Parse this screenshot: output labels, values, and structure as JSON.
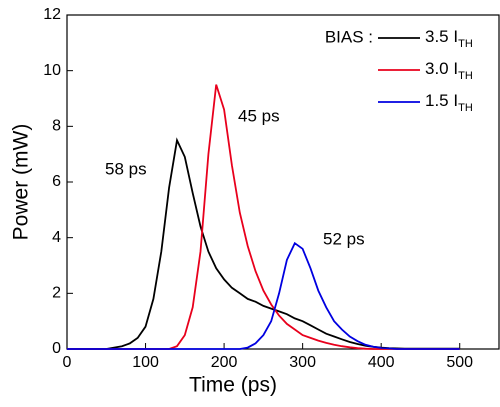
{
  "chart_data": {
    "type": "line",
    "x_label": "Time (ps)",
    "y_label": "Power (mW)",
    "legend_title": "BIAS :",
    "x": [
      0,
      10,
      20,
      30,
      40,
      50,
      60,
      70,
      80,
      90,
      100,
      110,
      120,
      130,
      140,
      150,
      160,
      170,
      180,
      190,
      200,
      210,
      220,
      230,
      240,
      250,
      260,
      270,
      280,
      290,
      300,
      310,
      320,
      330,
      340,
      350,
      360,
      370,
      380,
      390,
      400,
      410,
      420,
      430,
      440,
      450,
      460,
      470,
      480,
      490,
      500
    ],
    "series": [
      {
        "name": "3.5 ITH",
        "color": "#000000",
        "values": [
          0,
          0,
          0,
          0,
          0,
          0,
          0.05,
          0.1,
          0.2,
          0.4,
          0.8,
          1.8,
          3.5,
          5.8,
          7.5,
          6.9,
          5.6,
          4.4,
          3.5,
          2.9,
          2.5,
          2.2,
          2.0,
          1.8,
          1.7,
          1.55,
          1.45,
          1.35,
          1.25,
          1.1,
          1.0,
          0.85,
          0.7,
          0.55,
          0.45,
          0.35,
          0.25,
          0.18,
          0.12,
          0.08,
          0.05,
          0.03,
          0.02,
          0.01,
          0.01,
          0.01,
          0.01,
          0.01,
          0.01,
          0.01,
          0.01
        ]
      },
      {
        "name": "3.0 ITH",
        "color": "#e8001c",
        "values": [
          0,
          0,
          0,
          0,
          0,
          0,
          0,
          0,
          0,
          0,
          0,
          0,
          0,
          0,
          0.1,
          0.5,
          1.5,
          3.5,
          7.0,
          9.5,
          8.6,
          6.6,
          4.9,
          3.7,
          2.8,
          2.1,
          1.6,
          1.2,
          0.9,
          0.7,
          0.5,
          0.4,
          0.3,
          0.22,
          0.15,
          0.1,
          0.06,
          0.03,
          0.01,
          0,
          0,
          0,
          0,
          0,
          0,
          0,
          0,
          0,
          0,
          0,
          0
        ]
      },
      {
        "name": "1.5 ITH",
        "color": "#0000e0",
        "values": [
          0,
          0,
          0,
          0,
          0,
          0,
          0,
          0,
          0,
          0,
          0,
          0,
          0,
          0,
          0,
          0,
          0,
          0,
          0,
          0,
          0,
          0,
          0,
          0.05,
          0.2,
          0.5,
          1.0,
          2.0,
          3.2,
          3.8,
          3.6,
          2.9,
          2.1,
          1.5,
          1.0,
          0.7,
          0.45,
          0.28,
          0.15,
          0.08,
          0.04,
          0.02,
          0,
          0,
          0,
          0,
          0,
          0,
          0,
          0,
          0
        ]
      }
    ],
    "annotations": [
      {
        "text": "58 ps",
        "color": "#000000"
      },
      {
        "text": "45 ps",
        "color": "#e8001c"
      },
      {
        "text": "52 ps",
        "color": "#0000e0"
      }
    ],
    "xlim": [
      0,
      550
    ],
    "ylim": [
      0,
      12
    ],
    "xticks": [
      0,
      100,
      200,
      300,
      400,
      500
    ],
    "yticks": [
      0,
      2,
      4,
      6,
      8,
      10,
      12
    ]
  }
}
